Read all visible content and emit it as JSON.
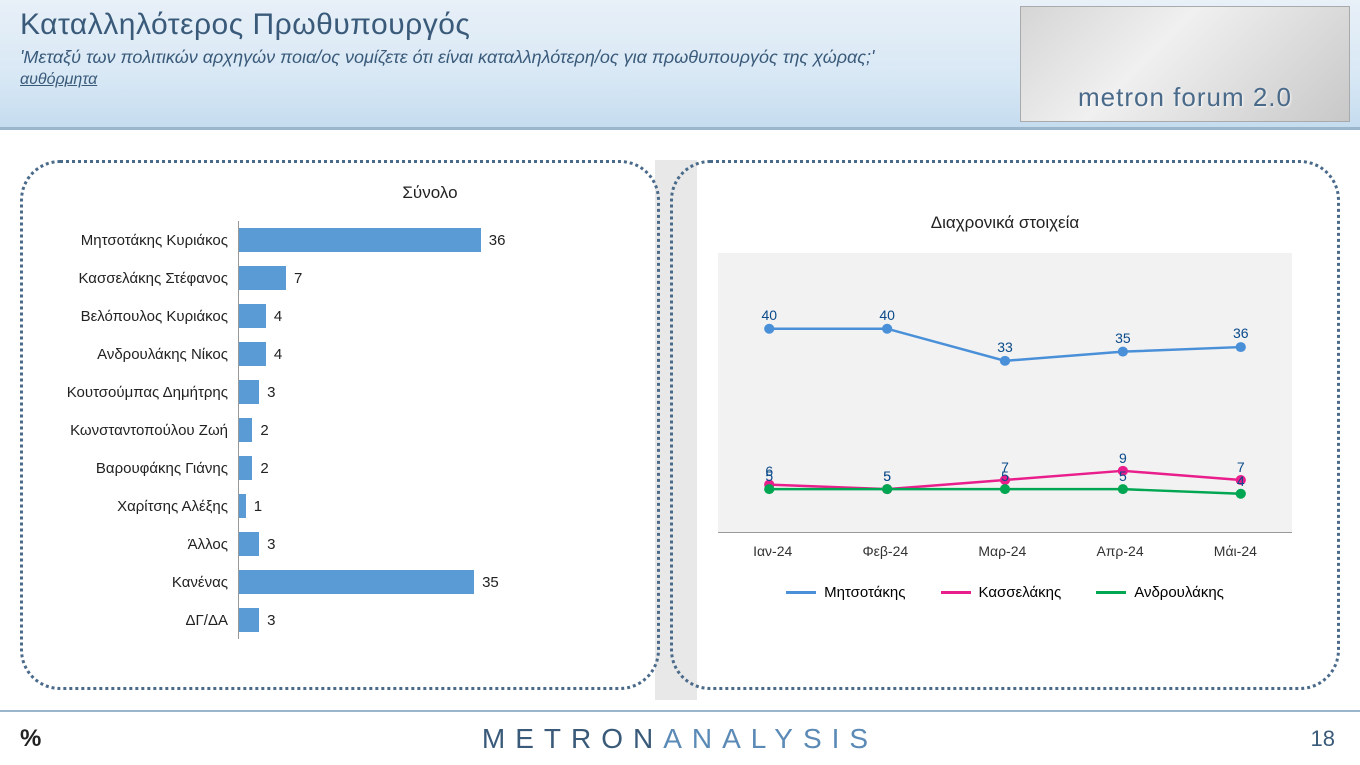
{
  "header": {
    "title": "Καταλληλότερος Πρωθυπουργός",
    "subtitle": "'Μεταξύ των πολιτικών αρχηγών ποια/ος νομίζετε ότι είναι καταλληλότερη/ος για πρωθυπουργός της χώρας;'",
    "note": "αυθόρμητα",
    "logo_text": "metron forum 2.0"
  },
  "bar_chart": {
    "type": "bar",
    "title": "Σύνολο",
    "bar_color": "#5b9bd5",
    "axis_color": "#999999",
    "text_color": "#222222",
    "label_fontsize": 15,
    "max_value": 60,
    "categories": [
      "Μητσοτάκης Κυριάκος",
      "Κασσελάκης Στέφανος",
      "Βελόπουλος Κυριάκος",
      "Ανδρουλάκης Νίκος",
      "Κουτσούμπας Δημήτρης",
      "Κωνσταντοπούλου Ζωή",
      "Βαρουφάκης Γιάνης",
      "Χαρίτσης Αλέξης",
      "Άλλος",
      "Κανένας",
      "ΔΓ/ΔΑ"
    ],
    "values": [
      36,
      7,
      4,
      4,
      3,
      2,
      2,
      1,
      3,
      35,
      3
    ]
  },
  "line_chart": {
    "type": "line",
    "title": "Διαχρονικά στοιχεία",
    "background_color": "#f2f2f2",
    "axis_color": "#999999",
    "ylim": [
      0,
      50
    ],
    "x_labels": [
      "Ιαν-24",
      "Φεβ-24",
      "Μαρ-24",
      "Απρ-24",
      "Μάι-24"
    ],
    "series": [
      {
        "name": "Μητσοτάκης",
        "color": "#4a90d9",
        "values": [
          40,
          40,
          33,
          35,
          36
        ]
      },
      {
        "name": "Κασσελάκης",
        "color": "#e91e8c",
        "values": [
          6,
          5,
          7,
          9,
          7
        ]
      },
      {
        "name": "Ανδρουλάκης",
        "color": "#00a651",
        "values": [
          5,
          5,
          5,
          5,
          4
        ]
      }
    ],
    "marker_size": 5,
    "line_width": 2.5,
    "label_fontsize": 14
  },
  "footer": {
    "brand_a": "METRON",
    "brand_b": "ANALYSIS",
    "page": "18",
    "pct": "%"
  }
}
